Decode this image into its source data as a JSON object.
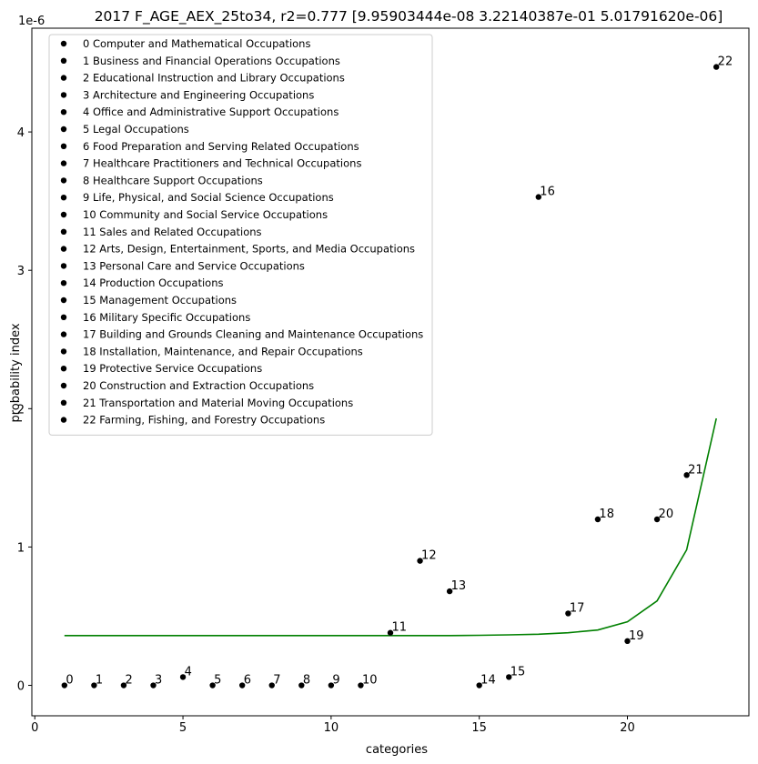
{
  "chart_data": {
    "type": "scatter",
    "title": "2017 F_AGE_AEX_25to34, r2=0.777  [9.95903444e-08 3.22140387e-01 5.01791620e-06]",
    "xlabel": "categories",
    "ylabel": "probability index",
    "y_offset_label": "1e-6",
    "xlim": [
      -0.1,
      24.1
    ],
    "ylim": [
      -0.22,
      4.75
    ],
    "xticks": [
      0,
      5,
      10,
      15,
      20
    ],
    "yticks": [
      0,
      1,
      2,
      3,
      4
    ],
    "point_color": "#000000",
    "fit_color": "#008000",
    "legend_position": "upper left",
    "points": [
      {
        "label": "0",
        "x": 1,
        "y": 0.0
      },
      {
        "label": "1",
        "x": 2,
        "y": 0.0
      },
      {
        "label": "2",
        "x": 3,
        "y": 0.0
      },
      {
        "label": "3",
        "x": 4,
        "y": 0.0
      },
      {
        "label": "4",
        "x": 5,
        "y": 0.06
      },
      {
        "label": "5",
        "x": 6,
        "y": 0.0
      },
      {
        "label": "6",
        "x": 7,
        "y": 0.0
      },
      {
        "label": "7",
        "x": 8,
        "y": 0.0
      },
      {
        "label": "8",
        "x": 9,
        "y": 0.0
      },
      {
        "label": "9",
        "x": 10,
        "y": 0.0
      },
      {
        "label": "10",
        "x": 11,
        "y": 0.0
      },
      {
        "label": "11",
        "x": 12,
        "y": 0.38
      },
      {
        "label": "12",
        "x": 13,
        "y": 0.9
      },
      {
        "label": "13",
        "x": 14,
        "y": 0.68
      },
      {
        "label": "14",
        "x": 15,
        "y": 0.0
      },
      {
        "label": "15",
        "x": 16,
        "y": 0.06
      },
      {
        "label": "16",
        "x": 17,
        "y": 3.53
      },
      {
        "label": "17",
        "x": 18,
        "y": 0.52
      },
      {
        "label": "18",
        "x": 19,
        "y": 1.2
      },
      {
        "label": "19",
        "x": 20,
        "y": 0.32
      },
      {
        "label": "20",
        "x": 21,
        "y": 1.2
      },
      {
        "label": "21",
        "x": 22,
        "y": 1.52
      },
      {
        "label": "22",
        "x": 23,
        "y": 4.47
      }
    ],
    "fit_line": {
      "x": [
        1,
        2,
        3,
        4,
        5,
        6,
        7,
        8,
        9,
        10,
        11,
        12,
        13,
        14,
        15,
        16,
        17,
        18,
        19,
        20,
        21,
        22,
        23
      ],
      "y": [
        0.36,
        0.36,
        0.36,
        0.36,
        0.36,
        0.36,
        0.36,
        0.36,
        0.36,
        0.36,
        0.36,
        0.36,
        0.36,
        0.36,
        0.362,
        0.365,
        0.37,
        0.38,
        0.4,
        0.46,
        0.61,
        0.98,
        1.93
      ]
    },
    "legend": [
      "0 Computer and Mathematical Occupations",
      "1 Business and Financial Operations Occupations",
      "2 Educational Instruction and Library Occupations",
      "3 Architecture and Engineering Occupations",
      "4 Office and Administrative Support Occupations",
      "5 Legal Occupations",
      "6 Food Preparation and Serving Related Occupations",
      "7 Healthcare Practitioners and Technical Occupations",
      "8 Healthcare Support Occupations",
      "9 Life, Physical, and Social Science Occupations",
      "10 Community and Social Service Occupations",
      "11 Sales and Related Occupations",
      "12 Arts, Design, Entertainment, Sports, and Media Occupations",
      "13 Personal Care and Service Occupations",
      "14 Production Occupations",
      "15 Management Occupations",
      "16 Military Specific Occupations",
      "17 Building and Grounds Cleaning and Maintenance Occupations",
      "18 Installation, Maintenance, and Repair Occupations",
      "19 Protective Service Occupations",
      "20 Construction and Extraction Occupations",
      "21 Transportation and Material Moving Occupations",
      "22 Farming, Fishing, and Forestry Occupations"
    ]
  }
}
